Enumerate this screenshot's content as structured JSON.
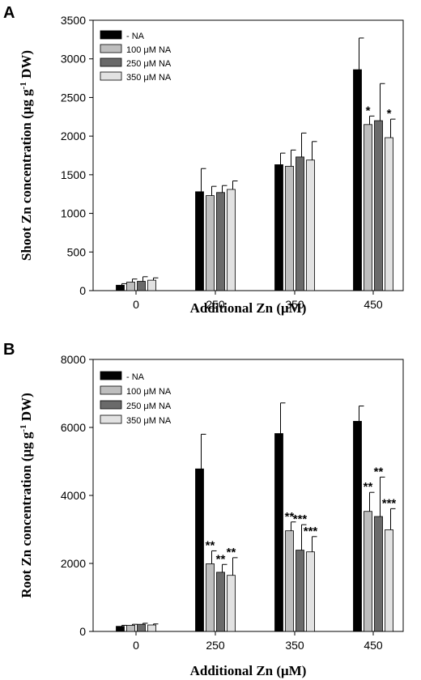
{
  "chart_data": [
    {
      "type": "bar",
      "panel": "A",
      "xlabel": "Additional Zn (μM)",
      "ylabel": "Shoot Zn concentration (μg g⁻¹ DW)",
      "ylabel_main": "Shoot Zn concentration (μg g",
      "ylabel_sup": "-1",
      "ylabel_end": " DW)",
      "ylim": [
        0,
        3500
      ],
      "yticks": [
        0,
        500,
        1000,
        1500,
        2000,
        2500,
        3000,
        3500
      ],
      "ytick_labels": [
        "0",
        "500",
        "1000",
        "1500",
        "2000",
        "2500",
        "3000",
        "3500"
      ],
      "categories": [
        "0",
        "250",
        "350",
        "450"
      ],
      "legend_position": "top-left",
      "grid": false,
      "series": [
        {
          "name": "- NA",
          "color": "#000000",
          "values": [
            70,
            1280,
            1630,
            2860
          ],
          "errors": [
            20,
            300,
            150,
            410
          ],
          "sig": [
            "",
            "",
            "",
            ""
          ]
        },
        {
          "name": "100 μM NA",
          "color": "#bebebe",
          "values": [
            110,
            1230,
            1610,
            2150
          ],
          "errors": [
            40,
            120,
            210,
            110
          ],
          "sig": [
            "",
            "",
            "",
            "*"
          ]
        },
        {
          "name": "250 μM NA",
          "color": "#6a6a6a",
          "values": [
            120,
            1270,
            1730,
            2200
          ],
          "errors": [
            60,
            90,
            310,
            480
          ],
          "sig": [
            "",
            "",
            "",
            ""
          ]
        },
        {
          "name": "350 μM NA",
          "color": "#e2e2e2",
          "values": [
            135,
            1310,
            1690,
            1980
          ],
          "errors": [
            30,
            110,
            240,
            240
          ],
          "sig": [
            "",
            "",
            "",
            "*"
          ]
        }
      ]
    },
    {
      "type": "bar",
      "panel": "B",
      "xlabel": "Additional Zn (μM)",
      "ylabel": "Root Zn concentration (μg g⁻¹ DW)",
      "ylabel_main": "Root Zn concentration (μg g",
      "ylabel_sup": "-1",
      "ylabel_end": " DW)",
      "ylim": [
        0,
        8000
      ],
      "yticks": [
        0,
        2000,
        4000,
        6000,
        8000
      ],
      "ytick_labels": [
        "0",
        "2000",
        "4000",
        "6000",
        "8000"
      ],
      "categories": [
        "0",
        "250",
        "350",
        "450"
      ],
      "legend_position": "top-left",
      "grid": false,
      "series": [
        {
          "name": "- NA",
          "color": "#000000",
          "values": [
            150,
            4780,
            5820,
            6180
          ],
          "errors": [
            30,
            1020,
            900,
            450
          ],
          "sig": [
            "",
            "",
            "",
            ""
          ]
        },
        {
          "name": "100 μM NA",
          "color": "#bebebe",
          "values": [
            180,
            1990,
            2960,
            3530
          ],
          "errors": [
            30,
            380,
            260,
            560
          ],
          "sig": [
            "",
            "**",
            "**",
            "**"
          ]
        },
        {
          "name": "250 μM NA",
          "color": "#6a6a6a",
          "values": [
            210,
            1740,
            2390,
            3380
          ],
          "errors": [
            30,
            230,
            750,
            1160
          ],
          "sig": [
            "",
            "**",
            "***",
            "**"
          ]
        },
        {
          "name": "350 μM NA",
          "color": "#e2e2e2",
          "values": [
            190,
            1650,
            2340,
            2990
          ],
          "errors": [
            30,
            520,
            450,
            620
          ],
          "sig": [
            "",
            "**",
            "***",
            "***"
          ]
        }
      ]
    }
  ]
}
